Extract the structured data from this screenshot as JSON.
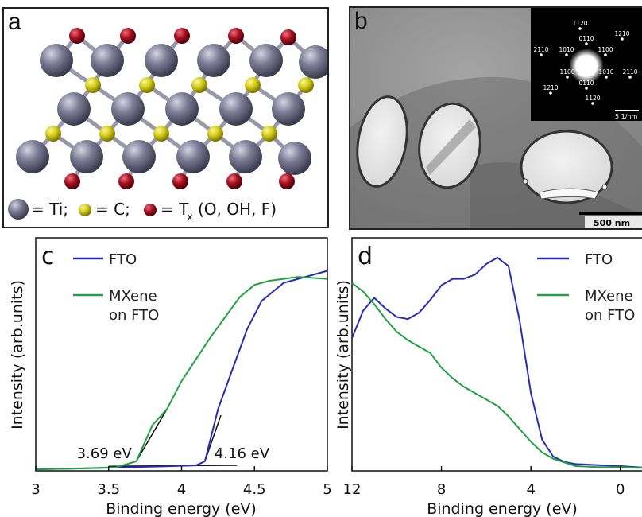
{
  "panel_a": {
    "letter": "a",
    "legend": {
      "ti": "= Ti;",
      "c": "= C;",
      "t_main": "= T",
      "t_sub": "x",
      "t_tail": "(O, OH, F)"
    },
    "colors": {
      "ti": "#7a7a92",
      "c": "#d8d21a",
      "t": "#a11020",
      "bond": "#8a8a9e"
    }
  },
  "panel_b": {
    "letter": "b",
    "scale_bar": "500 nm",
    "inset_scale": "5 1/nm",
    "diffraction_labels": [
      "1120",
      "1210",
      "0110",
      "1010",
      "1100",
      "2110",
      "2110",
      "1100",
      "1010",
      "0110",
      "1210",
      "1120"
    ]
  },
  "chart_data": [
    {
      "panel": "c",
      "type": "line",
      "xlabel": "Binding energy (eV)",
      "ylabel": "Intensity (arb.units)",
      "xlim": [
        3,
        5
      ],
      "ylim": [
        0,
        1
      ],
      "xticks": [
        "3",
        "3.5",
        "4",
        "4.5",
        "5"
      ],
      "grid": false,
      "legend_position": "top-left",
      "series": [
        {
          "name": "FTO",
          "color": "#2a2ab8",
          "points": [
            [
              3.0,
              0.0
            ],
            [
              3.3,
              0.004
            ],
            [
              3.6,
              0.01
            ],
            [
              3.9,
              0.015
            ],
            [
              4.1,
              0.02
            ],
            [
              4.16,
              0.04
            ],
            [
              4.25,
              0.3
            ],
            [
              4.35,
              0.5
            ],
            [
              4.45,
              0.7
            ],
            [
              4.55,
              0.84
            ],
            [
              4.7,
              0.93
            ],
            [
              4.85,
              0.96
            ],
            [
              5.0,
              0.99
            ]
          ]
        },
        {
          "name": "MXene on FTO",
          "color": "#21a043",
          "points": [
            [
              3.0,
              0.0
            ],
            [
              3.3,
              0.004
            ],
            [
              3.55,
              0.01
            ],
            [
              3.69,
              0.04
            ],
            [
              3.8,
              0.22
            ],
            [
              3.9,
              0.3
            ],
            [
              4.0,
              0.44
            ],
            [
              4.1,
              0.55
            ],
            [
              4.2,
              0.66
            ],
            [
              4.3,
              0.76
            ],
            [
              4.4,
              0.86
            ],
            [
              4.5,
              0.92
            ],
            [
              4.6,
              0.94
            ],
            [
              4.8,
              0.96
            ],
            [
              5.0,
              0.95
            ]
          ]
        }
      ],
      "annotations": [
        {
          "text": "3.69 eV",
          "x": 3.69
        },
        {
          "text": "4.16 eV",
          "x": 4.16
        }
      ],
      "tangent_lines": [
        {
          "from": [
            3.69,
            0.04
          ],
          "to": [
            3.9,
            0.3
          ]
        },
        {
          "from": [
            4.16,
            0.04
          ],
          "to": [
            4.27,
            0.27
          ]
        },
        {
          "from": [
            3.5,
            0.015
          ],
          "to": [
            4.38,
            0.02
          ]
        }
      ]
    },
    {
      "panel": "d",
      "type": "line",
      "xlabel": "Binding energy (eV)",
      "ylabel": "Intensity (arb.units)",
      "xlim": [
        12,
        -1.5
      ],
      "ylim": [
        0,
        1
      ],
      "xticks": [
        "12",
        "8",
        "4",
        "0"
      ],
      "grid": false,
      "legend_position": "top-right",
      "series": [
        {
          "name": "FTO",
          "color": "#2a2ab8",
          "points": [
            [
              12.0,
              0.62
            ],
            [
              11.5,
              0.75
            ],
            [
              11.0,
              0.81
            ],
            [
              10.5,
              0.76
            ],
            [
              10.0,
              0.72
            ],
            [
              9.5,
              0.71
            ],
            [
              9.0,
              0.74
            ],
            [
              8.5,
              0.8
            ],
            [
              8.0,
              0.87
            ],
            [
              7.5,
              0.9
            ],
            [
              7.0,
              0.9
            ],
            [
              6.5,
              0.92
            ],
            [
              6.0,
              0.97
            ],
            [
              5.5,
              1.0
            ],
            [
              5.0,
              0.96
            ],
            [
              4.5,
              0.7
            ],
            [
              4.0,
              0.36
            ],
            [
              3.5,
              0.14
            ],
            [
              3.0,
              0.06
            ],
            [
              2.5,
              0.035
            ],
            [
              2.0,
              0.025
            ],
            [
              1.0,
              0.02
            ],
            [
              0.0,
              0.015
            ],
            [
              -1.5,
              0.005
            ]
          ]
        },
        {
          "name": "MXene on FTO",
          "color": "#21a043",
          "points": [
            [
              12.0,
              0.88
            ],
            [
              11.5,
              0.84
            ],
            [
              11.0,
              0.78
            ],
            [
              10.5,
              0.71
            ],
            [
              10.0,
              0.65
            ],
            [
              9.5,
              0.61
            ],
            [
              9.0,
              0.58
            ],
            [
              8.5,
              0.55
            ],
            [
              8.0,
              0.48
            ],
            [
              7.5,
              0.43
            ],
            [
              7.0,
              0.39
            ],
            [
              6.5,
              0.36
            ],
            [
              6.0,
              0.33
            ],
            [
              5.5,
              0.3
            ],
            [
              5.0,
              0.25
            ],
            [
              4.5,
              0.19
            ],
            [
              4.0,
              0.13
            ],
            [
              3.5,
              0.08
            ],
            [
              3.0,
              0.05
            ],
            [
              2.0,
              0.015
            ],
            [
              1.0,
              0.01
            ],
            [
              0.0,
              0.01
            ],
            [
              -1.5,
              0.005
            ]
          ]
        }
      ]
    }
  ]
}
